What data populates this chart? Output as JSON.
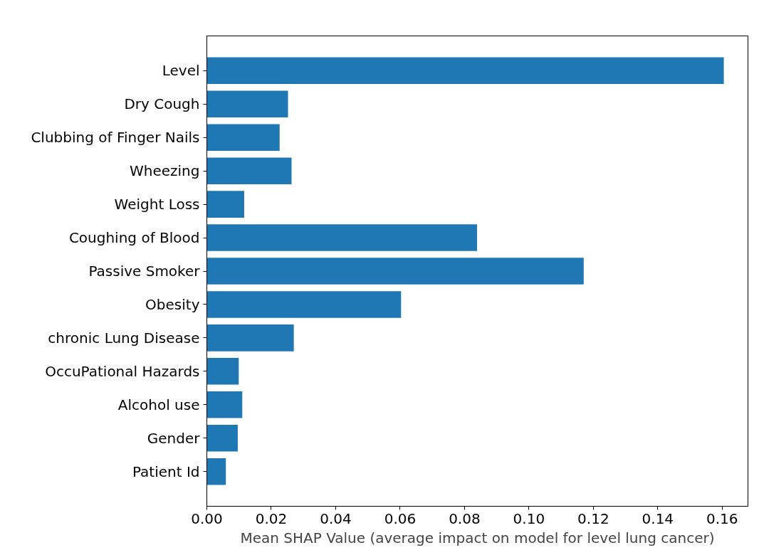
{
  "chart_data": {
    "type": "bar",
    "orientation": "horizontal",
    "xlabel": "Mean SHAP Value (average impact on model for level lung cancer)",
    "categories": [
      "Level",
      "Dry Cough",
      "Clubbing of Finger Nails",
      "Wheezing",
      "Weight Loss",
      "Coughing of Blood",
      "Passive Smoker",
      "Obesity",
      "chronic Lung Disease",
      "OccuPational Hazards",
      "Alcohol use",
      "Gender",
      "Patient Id"
    ],
    "values": [
      0.1605,
      0.0252,
      0.0226,
      0.0263,
      0.0116,
      0.0839,
      0.117,
      0.0603,
      0.027,
      0.0099,
      0.011,
      0.0096,
      0.0059
    ],
    "color": "#1f77b4",
    "xlim": [
      0,
      0.168
    ],
    "xticks": [
      {
        "value": 0,
        "label": "0.00"
      },
      {
        "value": 0.02,
        "label": "0.02"
      },
      {
        "value": 0.04,
        "label": "0.04"
      },
      {
        "value": 0.06,
        "label": "0.06"
      },
      {
        "value": 0.08,
        "label": "0.08"
      },
      {
        "value": 0.1,
        "label": "0.10"
      },
      {
        "value": 0.12,
        "label": "0.12"
      },
      {
        "value": 0.14,
        "label": "0.14"
      },
      {
        "value": 0.16,
        "label": "0.16"
      }
    ],
    "grid": false
  }
}
